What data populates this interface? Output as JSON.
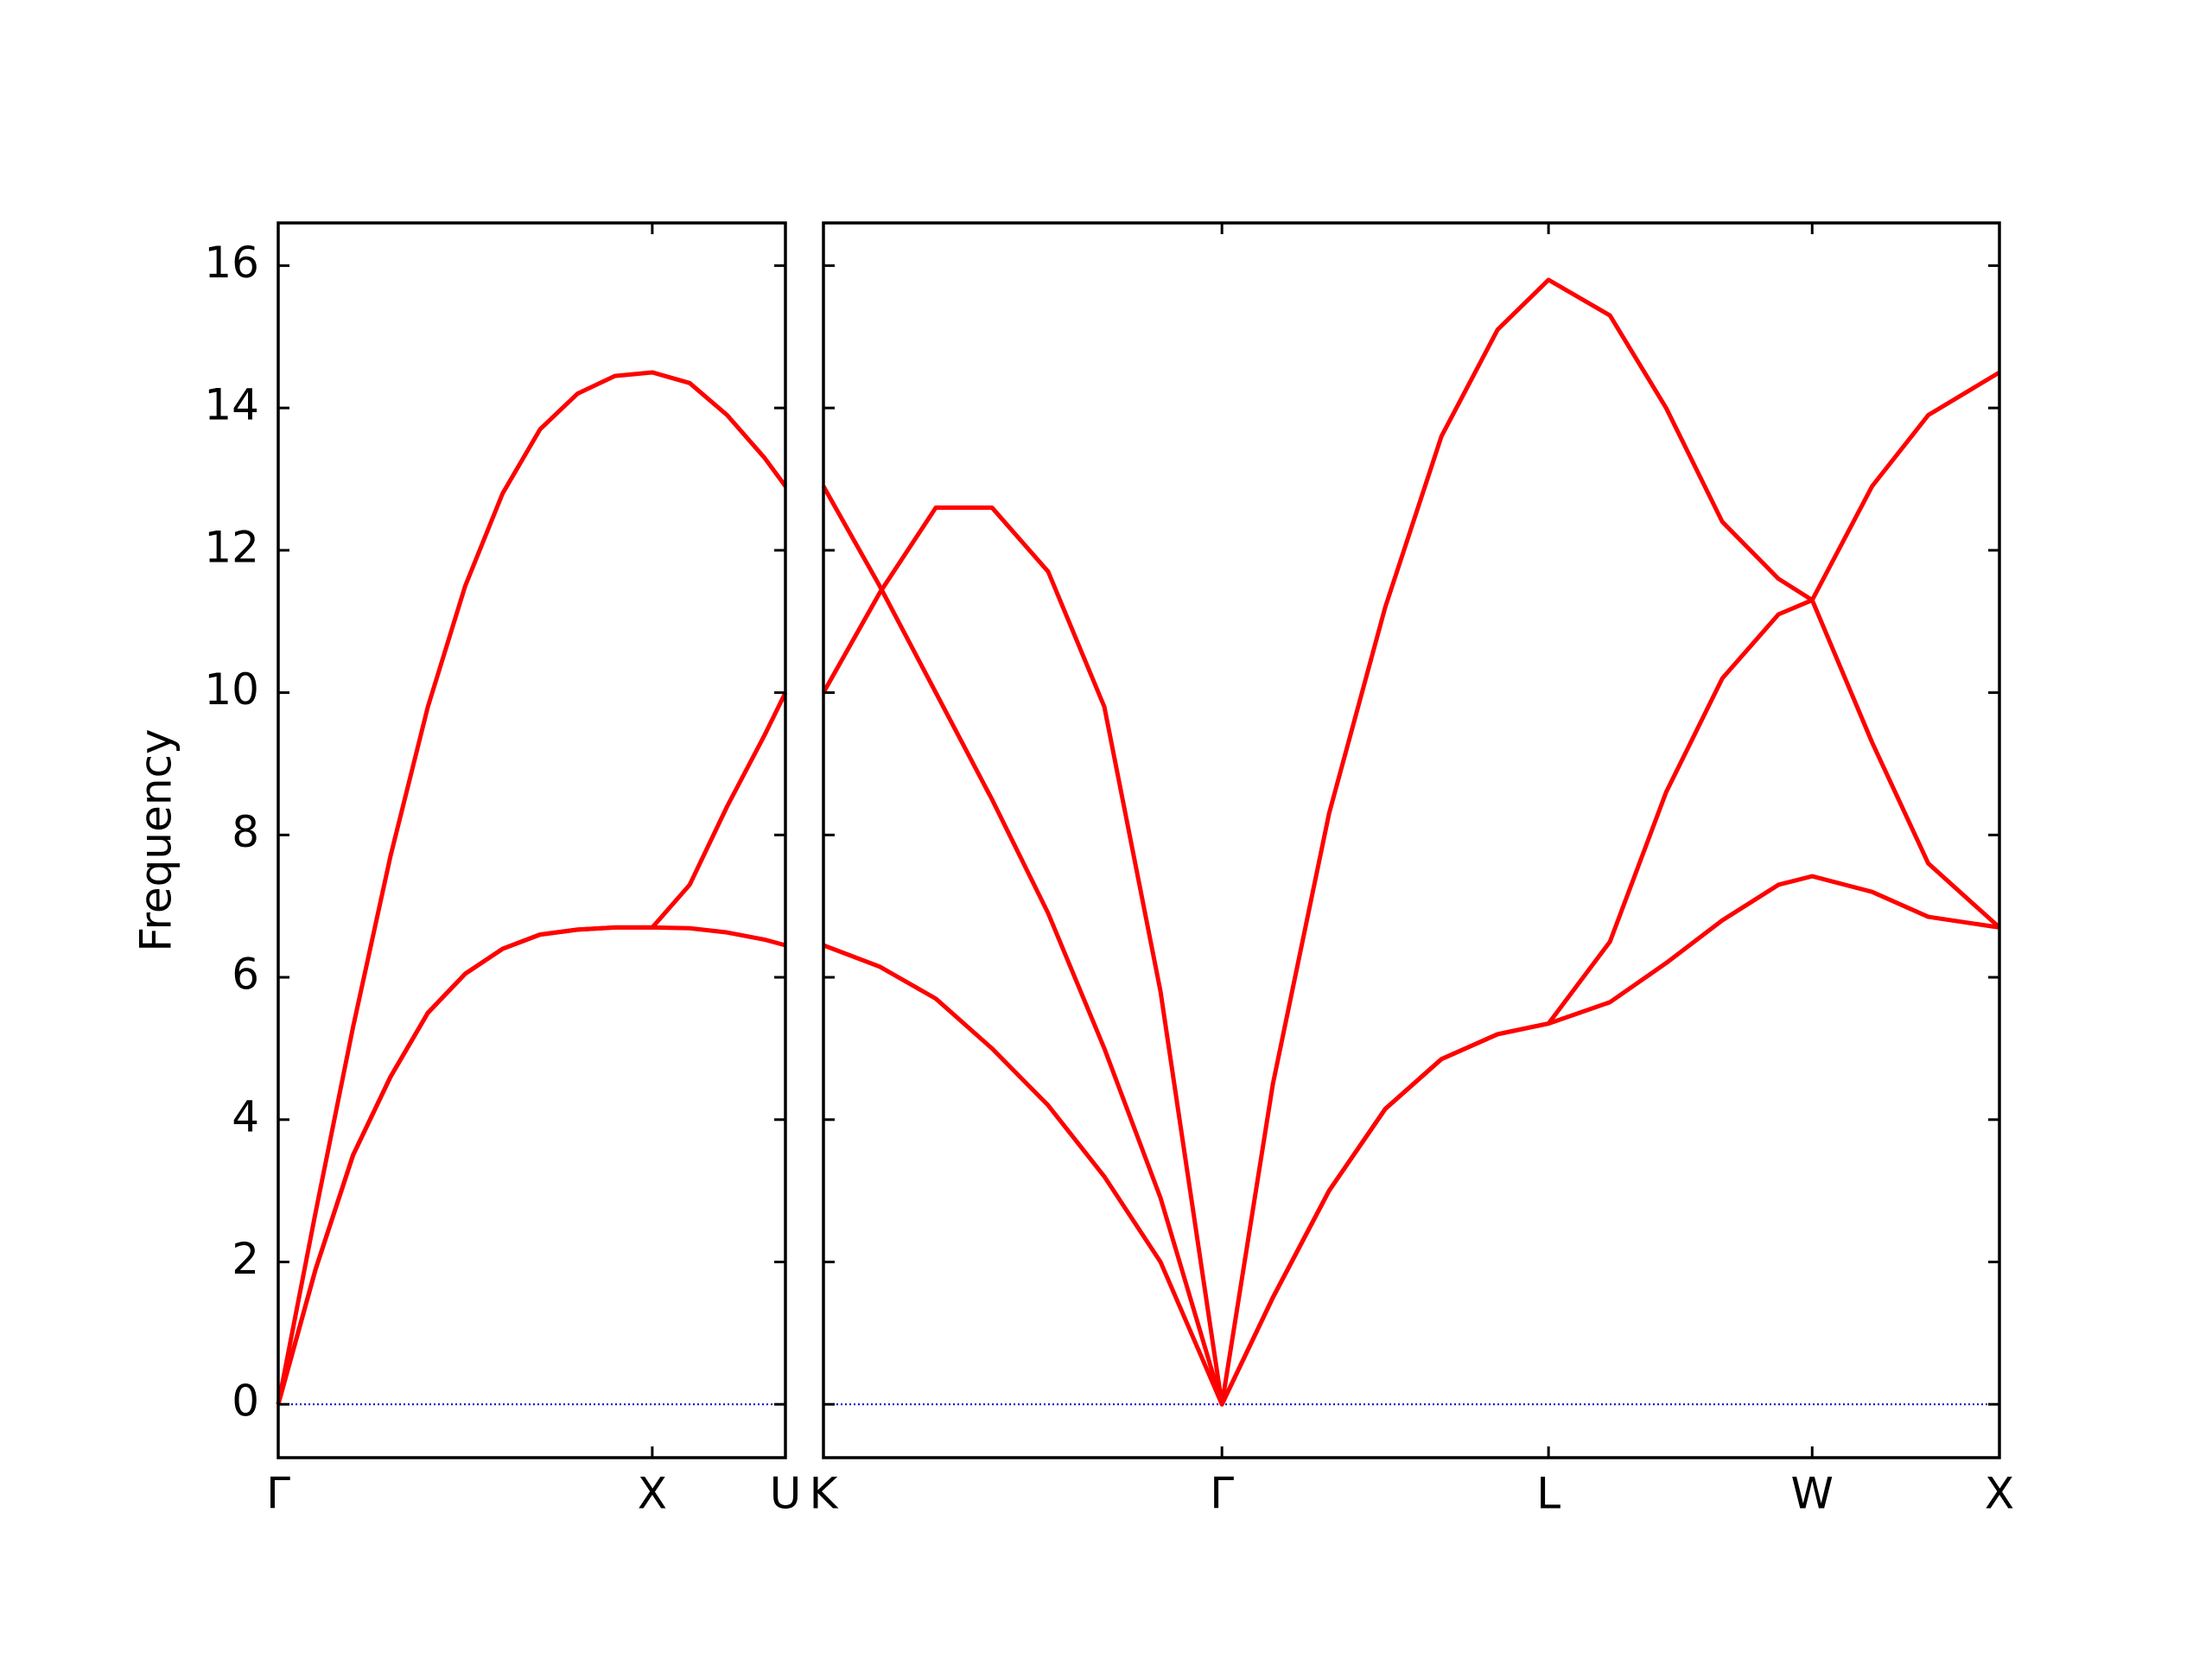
{
  "chart_data": [
    {
      "type": "line",
      "ylabel": "Frequency",
      "x": [
        0,
        0.1,
        0.2,
        0.3,
        0.4,
        0.5,
        0.6,
        0.7,
        0.8,
        0.9,
        1.0,
        1.1,
        1.2,
        1.3,
        1.356
      ],
      "series": [
        {
          "color": "#ff0000",
          "values": [
            0,
            1.9,
            3.5,
            4.6,
            5.5,
            6.05,
            6.4,
            6.6,
            6.67,
            6.7,
            6.7,
            6.69,
            6.63,
            6.53,
            6.45
          ]
        },
        {
          "color": "#ff0000",
          "values": [
            0,
            1.9,
            3.5,
            4.6,
            5.5,
            6.05,
            6.4,
            6.6,
            6.67,
            6.7,
            6.7,
            7.3,
            8.4,
            9.4,
            10.0
          ]
        },
        {
          "color": "#ff0000",
          "values": [
            0,
            2.7,
            5.3,
            7.7,
            9.8,
            11.5,
            12.8,
            13.7,
            14.2,
            14.45,
            14.5,
            14.35,
            13.9,
            13.3,
            12.9
          ]
        }
      ],
      "xlim": [
        0,
        1.356
      ],
      "xticks": [
        {
          "value": 0,
          "label": "Γ"
        },
        {
          "value": 1.0,
          "label": "X"
        },
        {
          "value": 1.356,
          "label": "U"
        }
      ],
      "ylim": [
        -0.75,
        16.6
      ],
      "yticks": [
        0,
        2,
        4,
        6,
        8,
        10,
        12,
        14,
        16
      ],
      "ytick_labels": true,
      "hline": 0,
      "hline_color": "#0000cc"
    },
    {
      "type": "line",
      "x": [
        0,
        0.15,
        0.3,
        0.45,
        0.6,
        0.75,
        0.9,
        1.064,
        1.2,
        1.35,
        1.5,
        1.65,
        1.8,
        1.936,
        2.1,
        2.25,
        2.4,
        2.55,
        2.64,
        2.8,
        2.95,
        3.14
      ],
      "series": [
        {
          "color": "#ff0000",
          "values": [
            6.45,
            6.15,
            5.7,
            5.0,
            4.2,
            3.2,
            2.0,
            0,
            1.5,
            3.0,
            4.15,
            4.85,
            5.2,
            5.35,
            5.65,
            6.2,
            6.8,
            7.3,
            7.42,
            7.2,
            6.85,
            6.7
          ]
        },
        {
          "color": "#ff0000",
          "values": [
            12.9,
            11.5,
            10.0,
            8.5,
            6.9,
            5.0,
            2.9,
            0,
            1.5,
            3.0,
            4.15,
            4.85,
            5.2,
            5.35,
            6.5,
            8.6,
            10.2,
            11.1,
            11.3,
            12.9,
            13.9,
            14.5
          ]
        },
        {
          "color": "#ff0000",
          "values": [
            10.0,
            11.4,
            12.6,
            12.6,
            11.7,
            9.8,
            5.8,
            0,
            4.5,
            8.3,
            11.2,
            13.6,
            15.1,
            15.8,
            15.3,
            14.0,
            12.4,
            11.6,
            11.3,
            9.3,
            7.6,
            6.7
          ]
        }
      ],
      "xlim": [
        0,
        3.14
      ],
      "xticks": [
        {
          "value": 0,
          "label": "K"
        },
        {
          "value": 1.064,
          "label": "Γ"
        },
        {
          "value": 1.936,
          "label": "L"
        },
        {
          "value": 2.64,
          "label": "W"
        },
        {
          "value": 3.14,
          "label": "X"
        }
      ],
      "ylim": [
        -0.75,
        16.6
      ],
      "yticks": [
        0,
        2,
        4,
        6,
        8,
        10,
        12,
        14,
        16
      ],
      "ytick_labels": false,
      "hline": 0,
      "hline_color": "#0000cc"
    }
  ]
}
